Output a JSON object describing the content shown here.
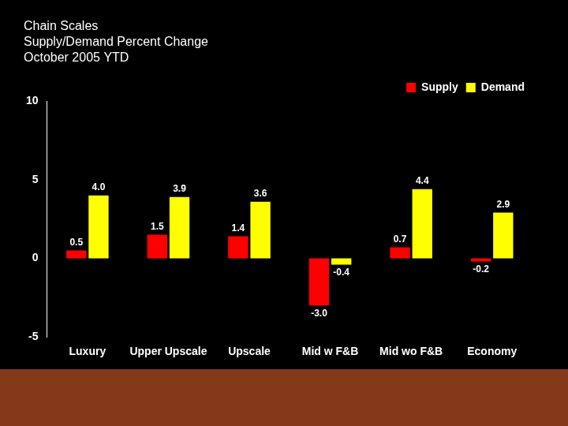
{
  "chart_data": {
    "type": "bar",
    "title": [
      "Chain Scales",
      "Supply/Demand Percent Change",
      "October 2005 YTD"
    ],
    "categories": [
      "Luxury",
      "Upper Upscale",
      "Upscale",
      "Mid w F&B",
      "Mid wo F&B",
      "Economy"
    ],
    "series": [
      {
        "name": "Supply",
        "color": "#ff0000",
        "values": [
          0.5,
          1.5,
          1.4,
          -3.0,
          0.7,
          -0.2
        ],
        "value_labels": [
          "0.5",
          "1.5",
          "1.4",
          "-3.0",
          "0.7",
          "-0.2"
        ]
      },
      {
        "name": "Demand",
        "color": "#ffff00",
        "values": [
          4.0,
          3.9,
          3.6,
          -0.4,
          4.4,
          2.9
        ],
        "value_labels": [
          "4.0",
          "3.9",
          "3.6",
          "-0.4",
          "4.4",
          "2.9"
        ]
      }
    ],
    "ylim": [
      -5,
      10
    ],
    "yticks": [
      -5,
      0,
      5,
      10
    ],
    "grid": false,
    "legend": "upper right",
    "data_labels": true
  }
}
